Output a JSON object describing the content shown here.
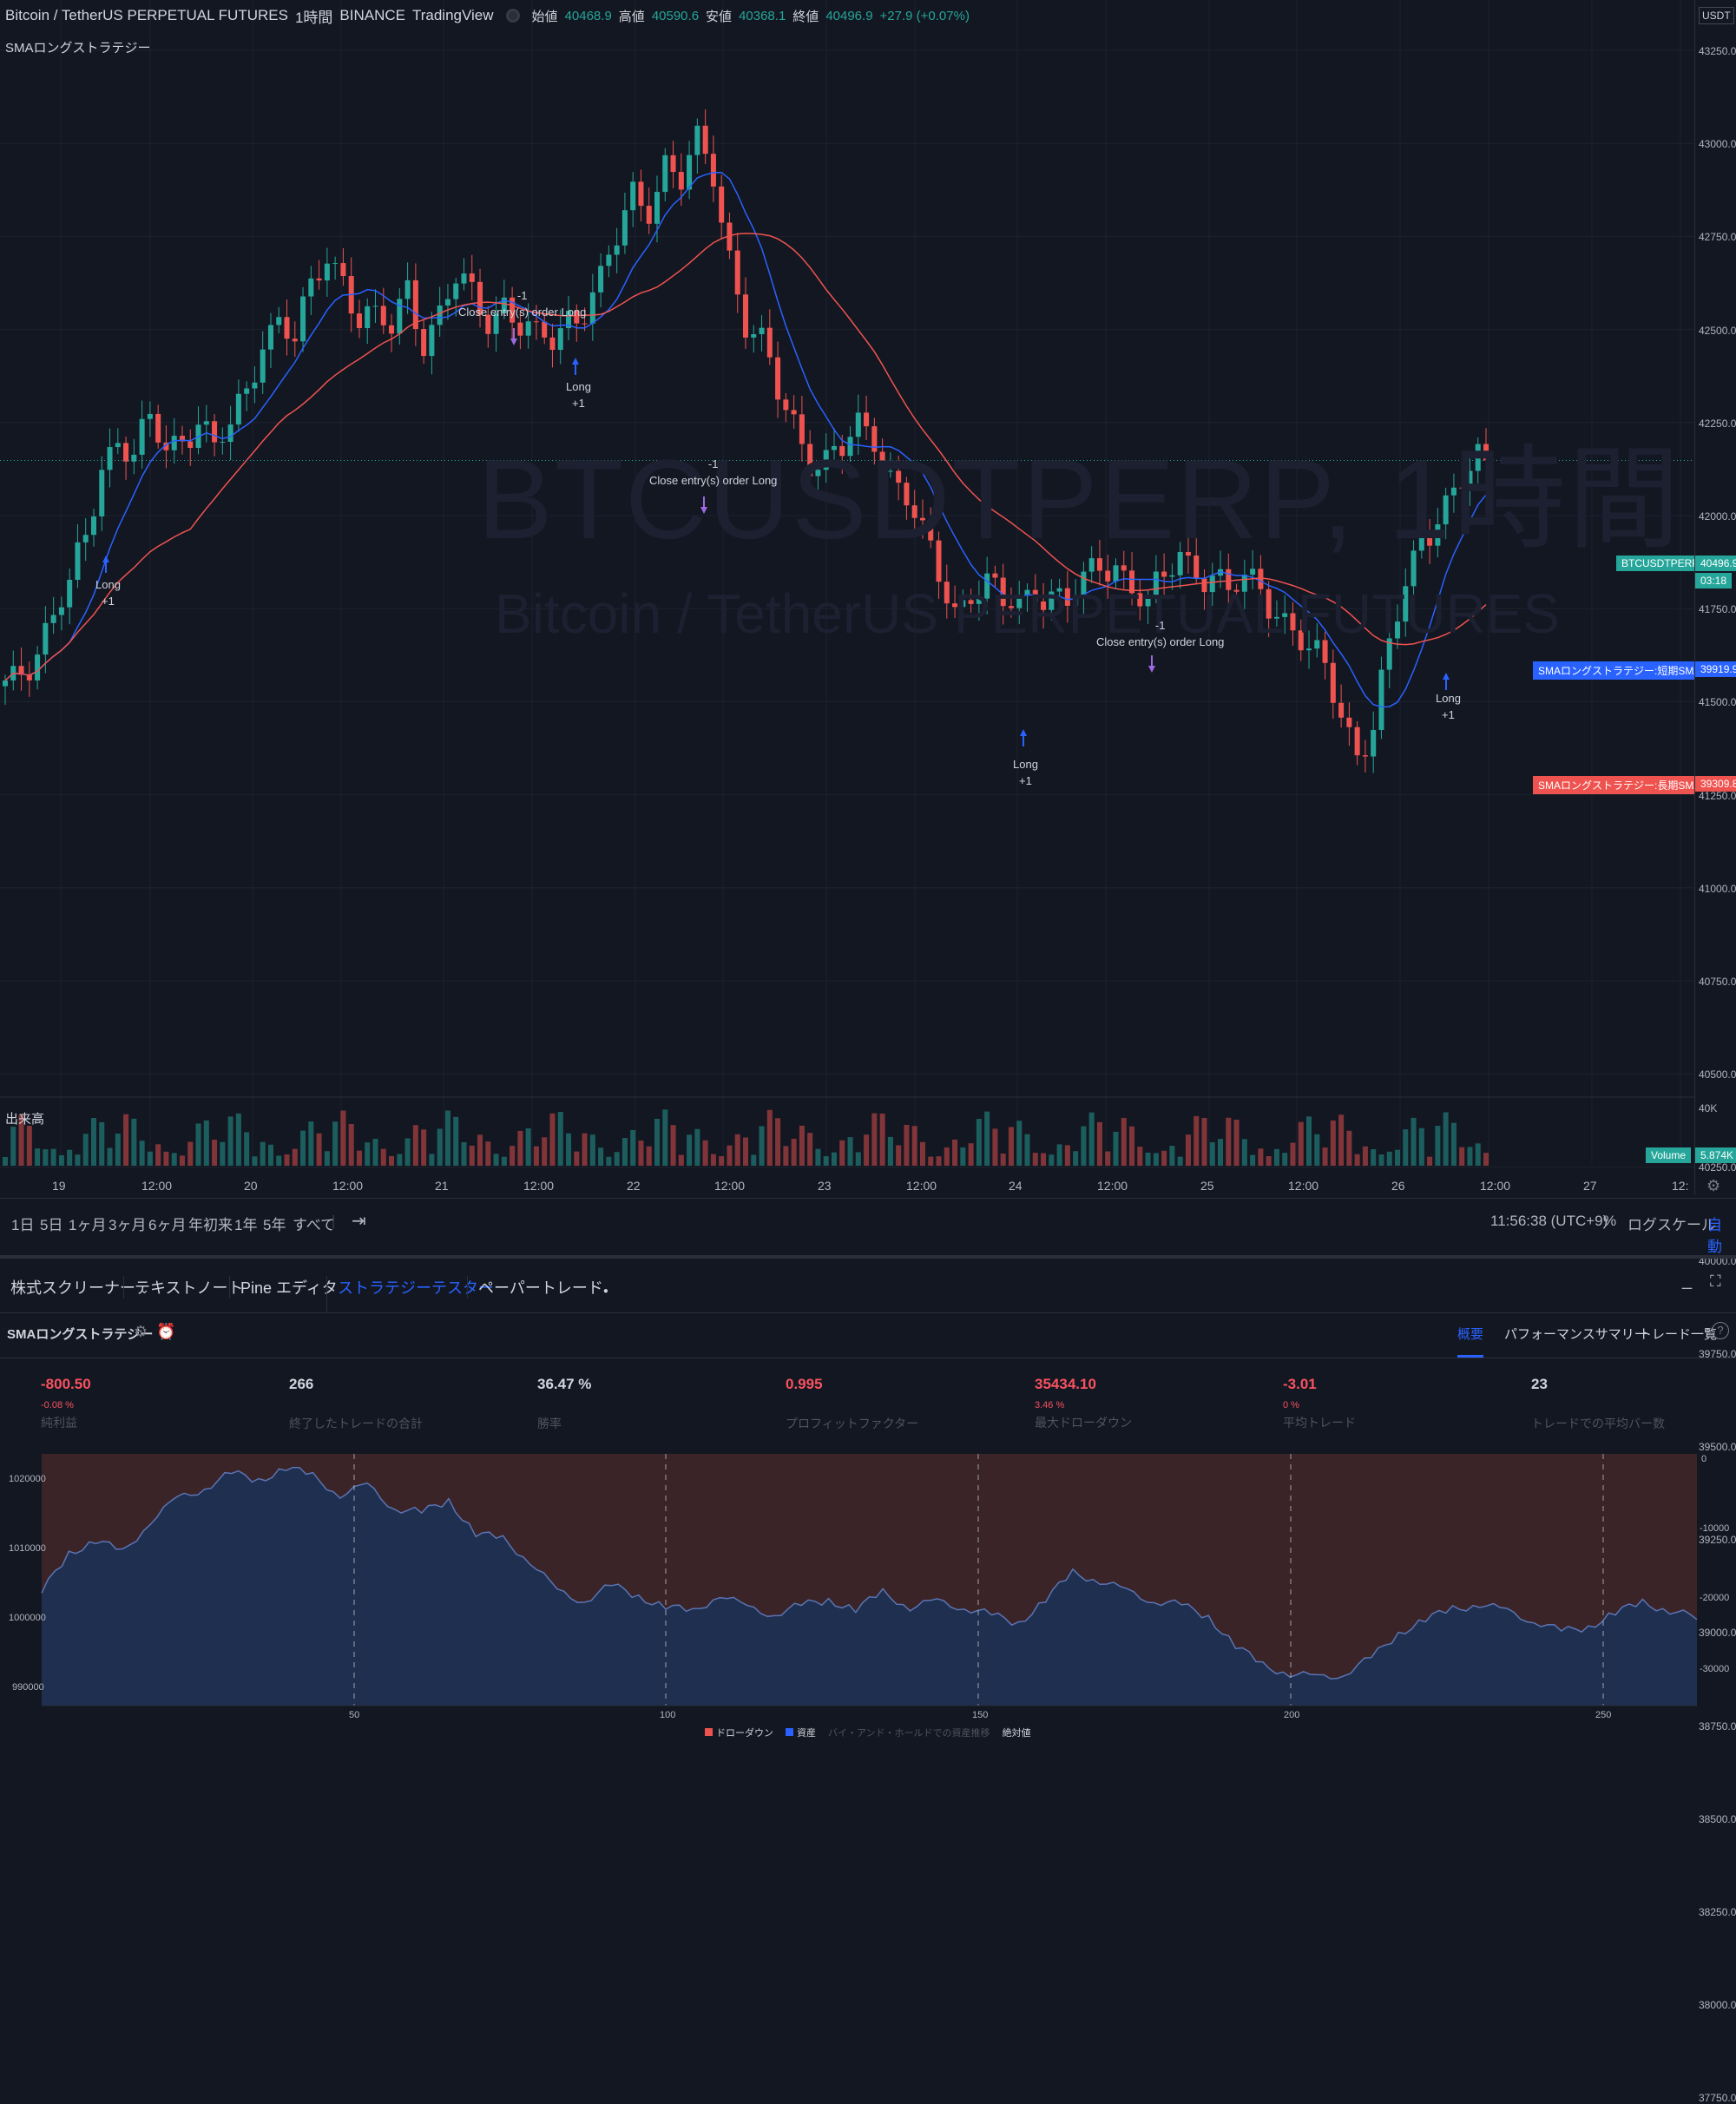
{
  "header": {
    "symbol": "Bitcoin / TetherUS PERPETUAL FUTURES",
    "interval": "1時間",
    "exchange": "BINANCE",
    "source": "TradingView",
    "open_label": "始値",
    "open": "40468.9",
    "high_label": "高値",
    "high": "40590.6",
    "low_label": "安値",
    "low": "40368.1",
    "close_label": "終値",
    "close": "40496.9",
    "change": "+27.9 (+0.07%)",
    "currency": "USDT"
  },
  "indicator_title": "SMAロングストラテジー",
  "watermark": {
    "line1": "BTCUSDTPERP, 1時間",
    "line2": "Bitcoin / TetherUS PERPETUAL FUTURES"
  },
  "price_ticks": [
    "43250.0",
    "43000.0",
    "42750.0",
    "42500.0",
    "42250.0",
    "42000.0",
    "41750.0",
    "41500.0",
    "41250.0",
    "41000.0",
    "40750.0",
    "40500.0",
    "40250.0",
    "40000.0",
    "39750.0",
    "39500.0",
    "39250.0",
    "39000.0",
    "38750.0",
    "38500.0",
    "38250.0",
    "38000.0",
    "37750.0"
  ],
  "price_tags": {
    "symbol_tag": "BTCUSDTPERP",
    "last_price": "40496.9",
    "countdown": "03:18",
    "short_sma_label": "SMAロングストラテジー:短期SMA",
    "short_sma": "39919.9",
    "long_sma_label": "SMAロングストラテジー:長期SMA",
    "long_sma": "39309.8"
  },
  "annotations": [
    {
      "text1": "Long",
      "text2": "+1"
    },
    {
      "text1": "-1",
      "text2": "Close entry(s) order Long"
    },
    {
      "text1": "Long",
      "text2": "+1"
    },
    {
      "text1": "-1",
      "text2": "Close entry(s) order Long"
    },
    {
      "text1": "Long",
      "text2": "+1"
    },
    {
      "text1": "-1",
      "text2": "Close entry(s) order Long"
    },
    {
      "text1": "Long",
      "text2": "+1"
    }
  ],
  "volume": {
    "label": "出来高",
    "axis_tick": "40K",
    "tag_label": "Volume",
    "tag_value": "5.874K"
  },
  "time_ticks": [
    "19",
    "12:00",
    "20",
    "12:00",
    "21",
    "12:00",
    "22",
    "12:00",
    "23",
    "12:00",
    "24",
    "12:00",
    "25",
    "12:00",
    "26",
    "12:00",
    "27",
    "12:"
  ],
  "range_buttons": [
    "1日",
    "5日",
    "1ヶ月",
    "3ヶ月",
    "6ヶ月",
    "年初来",
    "1年",
    "5年",
    "すべて"
  ],
  "clock": "11:56:38 (UTC+9)",
  "scale_options": {
    "percent": "%",
    "log": "ログスケール",
    "auto": "自動"
  },
  "panel_tabs": [
    "株式スクリーナー",
    "テキストノート",
    "Pine エディタ",
    "ストラテジーテスター",
    "ペーパートレード"
  ],
  "strategy": {
    "name": "SMAロングストラテジー",
    "tabs": [
      "概要",
      "パフォーマンスサマリー",
      "トレード一覧"
    ]
  },
  "stats": [
    {
      "value": "-800.50",
      "sub": "-0.08 %",
      "label": "純利益",
      "color": "#f7525f"
    },
    {
      "value": "266",
      "sub": "",
      "label": "終了したトレードの合計",
      "color": "#d1d4dc"
    },
    {
      "value": "36.47 %",
      "sub": "",
      "label": "勝率",
      "color": "#d1d4dc"
    },
    {
      "value": "0.995",
      "sub": "",
      "label": "プロフィットファクター",
      "color": "#f7525f"
    },
    {
      "value": "35434.10",
      "sub": "3.46 %",
      "label": "最大ドローダウン",
      "color": "#f7525f"
    },
    {
      "value": "-3.01",
      "sub": "0 %",
      "label": "平均トレード",
      "color": "#f7525f"
    },
    {
      "value": "23",
      "sub": "",
      "label": "トレードでの平均バー数",
      "color": "#d1d4dc"
    }
  ],
  "equity_axis_left": [
    "1020000",
    "1010000",
    "1000000",
    "990000"
  ],
  "equity_axis_right": [
    "0",
    "-10000",
    "-20000",
    "-30000"
  ],
  "equity_x_ticks": [
    "50",
    "100",
    "150",
    "200",
    "250"
  ],
  "legend": {
    "drawdown": "ドローダウン",
    "equity": "資産",
    "buyhold": "バイ・アンド・ホールドでの資産推移",
    "absolute": "絶対値"
  },
  "colors": {
    "up": "#26a69a",
    "down": "#ef5350",
    "short_sma": "#2962ff",
    "long_sma": "#ef5350",
    "accent": "#2962ff"
  },
  "chart_data": {
    "type": "candlestick",
    "interval": "1時間",
    "ylim": [
      37650,
      43350
    ],
    "close_path": [
      38900,
      38980,
      39200,
      39450,
      39650,
      39900,
      40450,
      40650,
      40600,
      40750,
      40550,
      40600,
      40850,
      40600,
      40750,
      40900,
      41350,
      41500,
      41400,
      41650,
      41900,
      41750,
      41550,
      41500,
      41400,
      41650,
      41350,
      41550,
      41800,
      41600,
      41450,
      41600,
      41500,
      41350,
      41300,
      41450,
      41600,
      41800,
      42050,
      42300,
      42250,
      42600,
      42500,
      42700,
      42450,
      41900,
      41500,
      41350,
      40950,
      40700,
      40500,
      40550,
      40600,
      40700,
      40600,
      40400,
      40300,
      40000,
      39650,
      39400,
      39600,
      39700,
      39500,
      39450,
      39550,
      39600,
      39550,
      39650,
      39700,
      39750,
      39650,
      39550,
      39650,
      39800,
      39700,
      39750,
      39600,
      39650,
      39550,
      39450,
      39350,
      39200,
      39000,
      38700,
      38450,
      38700,
      39200,
      39600,
      39900,
      40150,
      40300,
      40450,
      40497
    ],
    "short_sma_end": 39919.9,
    "long_sma_end": 39309.8,
    "equity": {
      "x_range": [
        0,
        266
      ],
      "points": [
        1004000,
        1010000,
        1012000,
        1010000,
        1015000,
        1018000,
        1020000,
        1022000,
        1021000,
        1023000,
        1021500,
        1019000,
        1020000,
        1017000,
        1016000,
        1018000,
        1013000,
        1012000,
        1009000,
        1004000,
        1003000,
        1005000,
        1003500,
        1002000,
        1001000,
        1004000,
        1001500,
        1001000,
        1002000,
        1003000,
        1001500,
        1004000,
        1002000,
        1002500,
        1002000,
        1000500,
        999500,
        1003000,
        1007000,
        1006000,
        1004000,
        1003000,
        1002000,
        1000500,
        996000,
        993000,
        992000,
        991000,
        992000,
        994000,
        998000,
        1000000,
        1001500,
        1002500,
        1001000,
        1000000,
        998000,
        999000,
        1001000,
        1002500,
        1001500,
        1000000
      ],
      "drawdown_min": -35434.1
    }
  }
}
